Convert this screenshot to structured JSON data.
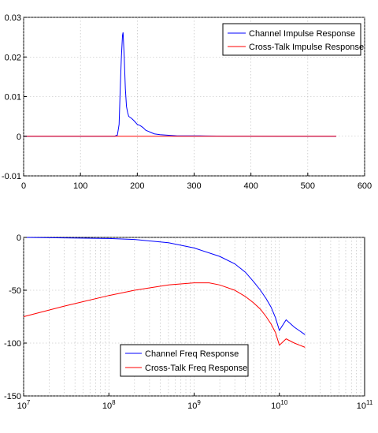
{
  "chart_data": [
    {
      "type": "line",
      "title": "",
      "xlabel": "",
      "ylabel": "",
      "xlim": [
        0,
        600
      ],
      "ylim": [
        -0.01,
        0.03
      ],
      "x_ticks": [
        0,
        100,
        200,
        300,
        400,
        500,
        600
      ],
      "y_ticks": [
        -0.01,
        0,
        0.01,
        0.02,
        0.03
      ],
      "x_tick_labels": [
        "0",
        "100",
        "200",
        "300",
        "400",
        "500",
        "600"
      ],
      "y_tick_labels": [
        "-0.01",
        "0",
        "0.01",
        "0.02",
        "0.03"
      ],
      "grid": true,
      "legend_position": "top-right",
      "series": [
        {
          "name": "Channel Impulse Response",
          "color": "#0000ff",
          "x": [
            0,
            160,
            165,
            168,
            170,
            172,
            174,
            175,
            177,
            179,
            181,
            183,
            185,
            190,
            195,
            200,
            205,
            210,
            215,
            220,
            225,
            230,
            240,
            250,
            260,
            270,
            280,
            300,
            320,
            340,
            360,
            400,
            450,
            500,
            550
          ],
          "y": [
            0,
            0,
            0.0003,
            0.003,
            0.012,
            0.02,
            0.0255,
            0.0262,
            0.02,
            0.012,
            0.0075,
            0.006,
            0.005,
            0.0045,
            0.0038,
            0.003,
            0.0027,
            0.0022,
            0.0015,
            0.0012,
            0.0009,
            0.0006,
            0.0004,
            0.0003,
            0.0002,
            0.0001,
            0.0001,
            0.0001,
            8e-05,
            5e-05,
            3e-05,
            2e-05,
            1e-05,
            0,
            0
          ]
        },
        {
          "name": "Cross-Talk Impulse Response",
          "color": "#ff0000",
          "x": [
            0,
            550
          ],
          "y": [
            0,
            0
          ]
        }
      ]
    },
    {
      "type": "line",
      "title": "",
      "xlabel": "",
      "ylabel": "",
      "x_scale": "log",
      "xlim": [
        10000000,
        100000000000
      ],
      "ylim": [
        -150,
        0
      ],
      "x_ticks": [
        10000000,
        100000000,
        1000000000,
        10000000000,
        100000000000
      ],
      "x_tick_labels": [
        "10^7",
        "10^8",
        "10^9",
        "10^10",
        "10^11"
      ],
      "y_ticks": [
        -150,
        -100,
        -50,
        0
      ],
      "y_tick_labels": [
        "-150",
        "-100",
        "-50",
        "0"
      ],
      "grid": true,
      "legend_position": "bottom-left",
      "series": [
        {
          "name": "Channel Freq Response",
          "color": "#0000ff",
          "x": [
            10000000,
            30000000,
            100000000,
            200000000,
            500000000,
            1000000000,
            2000000000,
            3000000000,
            4000000000,
            5000000000,
            6000000000,
            7000000000,
            8000000000,
            9000000000,
            10000000000,
            12000000000,
            15000000000,
            20000000000
          ],
          "y": [
            0,
            -0.5,
            -1,
            -2,
            -5,
            -10,
            -18,
            -25,
            -33,
            -42,
            -50,
            -58,
            -66,
            -76,
            -88,
            -78,
            -85,
            -92
          ]
        },
        {
          "name": "Cross-Talk Freq Response",
          "color": "#ff0000",
          "x": [
            10000000,
            30000000,
            100000000,
            200000000,
            500000000,
            1000000000,
            1500000000,
            2000000000,
            3000000000,
            4000000000,
            5000000000,
            6000000000,
            7000000000,
            8000000000,
            9000000000,
            10000000000,
            12000000000,
            15000000000,
            20000000000
          ],
          "y": [
            -75,
            -65,
            -55,
            -50,
            -45,
            -43,
            -43,
            -45,
            -50,
            -56,
            -62,
            -68,
            -75,
            -82,
            -90,
            -102,
            -96,
            -100,
            -104
          ]
        }
      ]
    }
  ]
}
